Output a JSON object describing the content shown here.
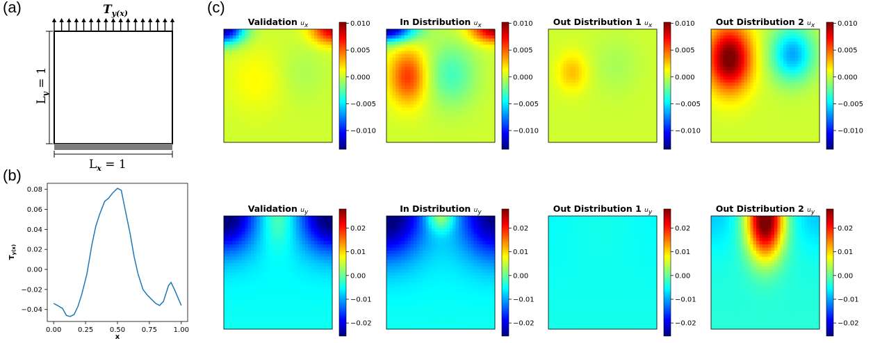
{
  "panels": {
    "a": "(a)",
    "b": "(b)",
    "c": "(c)"
  },
  "schematic": {
    "load_label_main": "T",
    "load_label_sub": "y(x)",
    "ly_label_main": "L",
    "ly_label_sub": "y",
    "ly_value": " = 1",
    "lx_label_main": "L",
    "lx_label_sub": "x",
    "lx_value": " = 1",
    "arrow_count": 17
  },
  "colormap": {
    "name": "jet",
    "stops": [
      "#00007f",
      "#0000ff",
      "#007fff",
      "#00ffff",
      "#7fff7f",
      "#ffff00",
      "#ff7f00",
      "#ff0000",
      "#7f0000"
    ]
  },
  "heatmaps": {
    "titles": [
      {
        "main": "Validation ",
        "sub": "u",
        "subsub": "x"
      },
      {
        "main": "In Distribution ",
        "sub": "u",
        "subsub": "x"
      },
      {
        "main": "Out Distribution 1 ",
        "sub": "u",
        "subsub": "x"
      },
      {
        "main": "Out Distribution 2 ",
        "sub": "u",
        "subsub": "x"
      },
      {
        "main": "Validation ",
        "sub": "u",
        "subsub": "y"
      },
      {
        "main": "In Distribution ",
        "sub": "u",
        "subsub": "y"
      },
      {
        "main": "Out Distribution 1 ",
        "sub": "u",
        "subsub": "y"
      },
      {
        "main": "Out Distribution 2 ",
        "sub": "u",
        "subsub": "y"
      }
    ],
    "ux_colorbar_ticks": [
      "0.010",
      "0.005",
      "0.000",
      "−0.005",
      "−0.010"
    ],
    "uy_colorbar_ticks": [
      "0.02",
      "0.01",
      "0.00",
      "−0.01",
      "−0.02"
    ]
  },
  "chart_data": [
    {
      "type": "line",
      "panel": "b",
      "xlabel": "x",
      "ylabel_main": "T",
      "ylabel_sub": "y(x)",
      "xlim": [
        -0.05,
        1.05
      ],
      "ylim": [
        -0.052,
        0.086
      ],
      "xticks": [
        0.0,
        0.25,
        0.5,
        0.75,
        1.0
      ],
      "xtick_labels": [
        "0.00",
        "0.25",
        "0.50",
        "0.75",
        "1.00"
      ],
      "yticks": [
        0.08,
        0.06,
        0.04,
        0.02,
        0.0,
        -0.02,
        -0.04
      ],
      "ytick_labels": [
        "0.08",
        "0.06",
        "0.04",
        "0.02",
        "0.00",
        "−0.02",
        "−0.04"
      ],
      "color": "#1f77b4",
      "series": [
        {
          "x": [
            0.0,
            0.03,
            0.07,
            0.1,
            0.13,
            0.16,
            0.19,
            0.22,
            0.26,
            0.3,
            0.33,
            0.36,
            0.4,
            0.43,
            0.46,
            0.5,
            0.53,
            0.56,
            0.6,
            0.63,
            0.66,
            0.7,
            0.73,
            0.76,
            0.8,
            0.83,
            0.86,
            0.9,
            0.92,
            0.95,
            1.0
          ],
          "y": [
            -0.034,
            -0.036,
            -0.039,
            -0.046,
            -0.047,
            -0.045,
            -0.037,
            -0.025,
            -0.005,
            0.025,
            0.043,
            0.055,
            0.068,
            0.071,
            0.076,
            0.081,
            0.079,
            0.06,
            0.035,
            0.013,
            -0.004,
            -0.02,
            -0.025,
            -0.029,
            -0.034,
            -0.036,
            -0.032,
            -0.016,
            -0.013,
            -0.021,
            -0.036
          ]
        }
      ]
    },
    {
      "type": "heatmap",
      "title": "Validation u_x",
      "field": "ux",
      "clim": [
        -0.0135,
        0.0102
      ],
      "colorbar_ticks": [
        0.01,
        0.005,
        0.0,
        -0.005,
        -0.01
      ]
    },
    {
      "type": "heatmap",
      "title": "In Distribution u_x",
      "field": "ux",
      "clim": [
        -0.0135,
        0.0102
      ],
      "colorbar_ticks": [
        0.01,
        0.005,
        0.0,
        -0.005,
        -0.01
      ]
    },
    {
      "type": "heatmap",
      "title": "Out Distribution 1 u_x",
      "field": "ux",
      "clim": [
        -0.0135,
        0.0102
      ],
      "colorbar_ticks": [
        0.01,
        0.005,
        0.0,
        -0.005,
        -0.01
      ]
    },
    {
      "type": "heatmap",
      "title": "Out Distribution 2 u_x",
      "field": "ux",
      "clim": [
        -0.0135,
        0.0102
      ],
      "colorbar_ticks": [
        0.01,
        0.005,
        0.0,
        -0.005,
        -0.01
      ]
    },
    {
      "type": "heatmap",
      "title": "Validation u_y",
      "field": "uy",
      "clim": [
        -0.0255,
        0.028
      ],
      "colorbar_ticks": [
        0.02,
        0.01,
        0.0,
        -0.01,
        -0.02
      ]
    },
    {
      "type": "heatmap",
      "title": "In Distribution u_y",
      "field": "uy",
      "clim": [
        -0.0255,
        0.028
      ],
      "colorbar_ticks": [
        0.02,
        0.01,
        0.0,
        -0.01,
        -0.02
      ]
    },
    {
      "type": "heatmap",
      "title": "Out Distribution 1 u_y",
      "field": "uy",
      "clim": [
        -0.0255,
        0.028
      ],
      "colorbar_ticks": [
        0.02,
        0.01,
        0.0,
        -0.01,
        -0.02
      ]
    },
    {
      "type": "heatmap",
      "title": "Out Distribution 2 u_y",
      "field": "uy",
      "clim": [
        -0.0255,
        0.028
      ],
      "colorbar_ticks": [
        0.02,
        0.01,
        0.0,
        -0.01,
        -0.02
      ]
    }
  ]
}
